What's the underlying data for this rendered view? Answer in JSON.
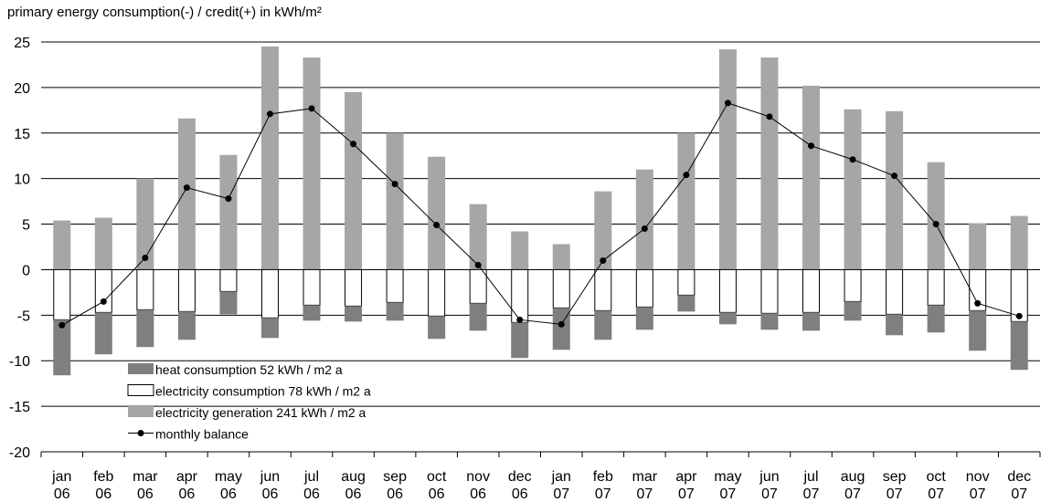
{
  "chart_data": {
    "type": "bar",
    "title": "primary energy consumption(-) / credit(+) in kWh/m²",
    "ylim": [
      -20,
      25
    ],
    "yticks": [
      25,
      20,
      15,
      10,
      5,
      0,
      -5,
      -10,
      -15,
      -20
    ],
    "ytick_labels": [
      "25",
      "20",
      "15",
      "10",
      "5",
      "0",
      "-5",
      "-10",
      "-15",
      "-20"
    ],
    "grid": "horizontal",
    "legend_position": "bottom-left",
    "categories": [
      [
        "jan",
        "06"
      ],
      [
        "feb",
        "06"
      ],
      [
        "mar",
        "06"
      ],
      [
        "apr",
        "06"
      ],
      [
        "may",
        "06"
      ],
      [
        "jun",
        "06"
      ],
      [
        "jul",
        "06"
      ],
      [
        "aug",
        "06"
      ],
      [
        "sep",
        "06"
      ],
      [
        "oct",
        "06"
      ],
      [
        "nov",
        "06"
      ],
      [
        "dec",
        "06"
      ],
      [
        "jan",
        "07"
      ],
      [
        "feb",
        "07"
      ],
      [
        "mar",
        "07"
      ],
      [
        "apr",
        "07"
      ],
      [
        "may",
        "07"
      ],
      [
        "jun",
        "07"
      ],
      [
        "jul",
        "07"
      ],
      [
        "aug",
        "07"
      ],
      [
        "sep",
        "07"
      ],
      [
        "oct",
        "07"
      ],
      [
        "nov",
        "07"
      ],
      [
        "dec",
        "07"
      ]
    ],
    "series": [
      {
        "name": "heat consumption 52 kWh / m2 a",
        "kind": "stacked-negative-bar",
        "color": "#7f7f7f",
        "values": [
          -6.1,
          -4.6,
          -4.1,
          -3.1,
          -2.5,
          -2.2,
          -1.7,
          -1.7,
          -2.0,
          -2.5,
          -3.0,
          -3.9,
          -4.6,
          -3.2,
          -2.5,
          -1.8,
          -1.3,
          -1.8,
          -2.0,
          -2.1,
          -2.3,
          -3.0,
          -4.4,
          -5.3
        ]
      },
      {
        "name": "electricity consumption 78 kWh / m2 a",
        "kind": "negative-bar",
        "color": "#ffffff",
        "values": [
          -5.5,
          -4.7,
          -4.4,
          -4.6,
          -2.4,
          -5.3,
          -3.9,
          -4.0,
          -3.6,
          -5.1,
          -3.7,
          -5.8,
          -4.2,
          -4.5,
          -4.1,
          -2.8,
          -4.7,
          -4.8,
          -4.7,
          -3.5,
          -4.9,
          -3.9,
          -4.5,
          -5.7
        ]
      },
      {
        "name": "electricity generation 241 kWh / m2 a",
        "kind": "positive-bar",
        "color": "#a6a6a6",
        "values": [
          5.4,
          5.7,
          10.0,
          16.6,
          12.6,
          24.5,
          23.3,
          19.5,
          15.0,
          12.4,
          7.2,
          4.2,
          2.8,
          8.6,
          11.0,
          15.0,
          24.2,
          23.3,
          20.2,
          17.6,
          17.4,
          11.8,
          5.1,
          5.9
        ]
      },
      {
        "name": "monthly balance",
        "kind": "line",
        "color": "#000000",
        "values": [
          -6.1,
          -3.5,
          1.3,
          9.0,
          7.8,
          17.1,
          17.7,
          13.8,
          9.4,
          4.9,
          0.5,
          -5.5,
          -6.0,
          1.0,
          4.5,
          10.4,
          18.3,
          16.8,
          13.6,
          12.1,
          10.3,
          5.0,
          -3.7,
          -5.1
        ]
      }
    ]
  }
}
